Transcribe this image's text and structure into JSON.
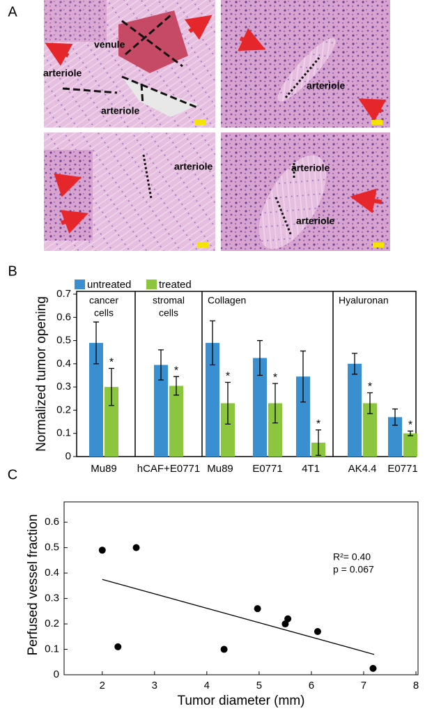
{
  "panel_labels": [
    "A",
    "B",
    "C"
  ],
  "panel_a": {
    "images": [
      {
        "labels": [
          "venule",
          "arteriole",
          "arteriole"
        ]
      },
      {
        "labels": [
          "arteriole"
        ]
      },
      {
        "labels": [
          "arteriole"
        ]
      },
      {
        "labels": [
          "arteriole",
          "arteriole"
        ]
      }
    ]
  },
  "chart_data": [
    {
      "type": "bar",
      "ylabel": "Normalized tumor opening",
      "categories": [
        "Mu89",
        "hCAF+E0771",
        "Mu89",
        "E0771",
        "4T1",
        "AK4.4",
        "E0771"
      ],
      "groups": [
        {
          "label_lines": [
            "cancer",
            "cells"
          ],
          "count": 1
        },
        {
          "label_lines": [
            "stromal",
            "cells"
          ],
          "count": 1
        },
        {
          "label_lines": [
            "Collagen"
          ],
          "count": 3
        },
        {
          "label_lines": [
            "Hyaluronan"
          ],
          "count": 2
        }
      ],
      "series": [
        {
          "name": "untreated",
          "color": "#3a8fd0",
          "values": [
            0.49,
            0.395,
            0.49,
            0.425,
            0.345,
            0.4,
            0.17
          ],
          "errors": [
            0.09,
            0.065,
            0.095,
            0.075,
            0.11,
            0.045,
            0.035
          ]
        },
        {
          "name": "treated",
          "color": "#8cc63f",
          "values": [
            0.3,
            0.305,
            0.23,
            0.23,
            0.06,
            0.23,
            0.1
          ],
          "errors": [
            0.08,
            0.04,
            0.09,
            0.085,
            0.055,
            0.045,
            0.01
          ],
          "significance": [
            "*",
            "*",
            "*",
            "*",
            "*",
            "*",
            "*"
          ]
        }
      ],
      "ylim": [
        0,
        0.7
      ],
      "yticks": [
        0,
        0.1,
        0.2,
        0.3,
        0.4,
        0.5,
        0.6,
        0.7
      ]
    },
    {
      "type": "scatter",
      "xlabel": "Tumor diameter (mm)",
      "ylabel": "Perfused vessel fraction",
      "x": [
        2.0,
        2.3,
        2.65,
        4.33,
        4.97,
        5.5,
        5.55,
        6.12,
        7.18
      ],
      "values": [
        0.49,
        0.11,
        0.5,
        0.1,
        0.26,
        0.2,
        0.22,
        0.17,
        0.025
      ],
      "color": "#000000",
      "trend_line": {
        "x": [
          2.0,
          7.2
        ],
        "y": [
          0.375,
          0.08
        ]
      },
      "annotations": [
        "R²= 0.40",
        "p = 0.067"
      ],
      "xlim": [
        1.27,
        8.04
      ],
      "ylim": [
        0,
        0.68
      ],
      "xticks": [
        2,
        3,
        4,
        5,
        6,
        7,
        8
      ],
      "yticks": [
        0,
        0.1,
        0.2,
        0.3,
        0.4,
        0.5,
        0.6
      ]
    }
  ]
}
